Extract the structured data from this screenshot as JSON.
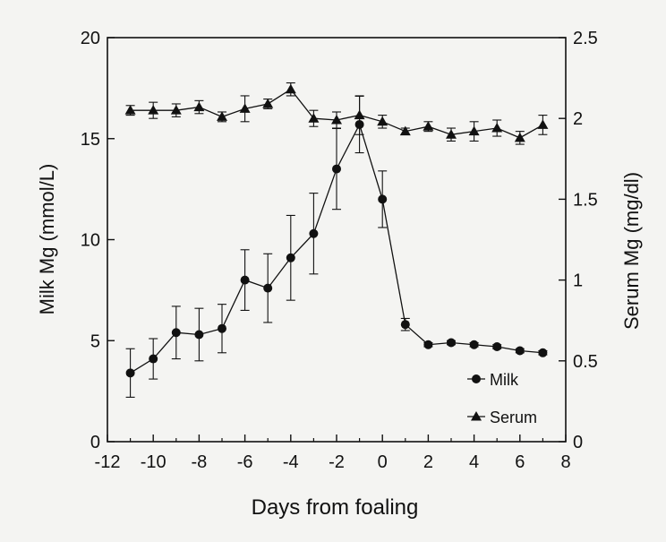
{
  "chart_data": {
    "type": "line",
    "xlabel": "Days from foaling",
    "ylabel_left": "Milk Mg (mmol/L)",
    "ylabel_right": "Serum Mg (mg/dl)",
    "xlim": [
      -12,
      8
    ],
    "ylim_left": [
      0,
      20
    ],
    "ylim_right": [
      0,
      2.5
    ],
    "x_ticks": [
      -12,
      -10,
      -8,
      -6,
      -4,
      -2,
      0,
      2,
      4,
      6,
      8
    ],
    "y_ticks_left": [
      0,
      5,
      10,
      15,
      20
    ],
    "y_ticks_right": [
      0,
      0.5,
      1,
      1.5,
      2,
      2.5
    ],
    "grid": false,
    "legend_placement": "bottom-right",
    "series": [
      {
        "name": "Milk",
        "axis": "left",
        "marker": "circle",
        "x": [
          -11,
          -10,
          -9,
          -8,
          -7,
          -6,
          -5,
          -4,
          -3,
          -2,
          -1,
          0,
          1,
          2,
          3,
          4,
          5,
          6,
          7
        ],
        "values": [
          3.4,
          4.1,
          5.4,
          5.3,
          5.6,
          8.0,
          7.6,
          9.1,
          10.3,
          13.5,
          15.7,
          12.0,
          5.8,
          4.8,
          4.9,
          4.8,
          4.7,
          4.5,
          4.4
        ],
        "error": [
          1.2,
          1.0,
          1.3,
          1.3,
          1.2,
          1.5,
          1.7,
          2.1,
          2.0,
          2.0,
          1.4,
          1.4,
          0.3,
          0.1,
          0.1,
          0.1,
          0.1,
          0.1,
          0.1
        ]
      },
      {
        "name": "Serum",
        "axis": "right",
        "marker": "triangle",
        "x": [
          -11,
          -10,
          -9,
          -8,
          -7,
          -6,
          -5,
          -4,
          -3,
          -2,
          -1,
          0,
          1,
          2,
          3,
          4,
          5,
          6,
          7
        ],
        "values": [
          2.05,
          2.05,
          2.05,
          2.07,
          2.01,
          2.06,
          2.09,
          2.18,
          2.0,
          1.99,
          2.02,
          1.98,
          1.92,
          1.95,
          1.9,
          1.92,
          1.94,
          1.88,
          1.96
        ],
        "error": [
          0.03,
          0.05,
          0.04,
          0.04,
          0.03,
          0.08,
          0.03,
          0.04,
          0.05,
          0.05,
          0.12,
          0.04,
          0.02,
          0.03,
          0.04,
          0.06,
          0.05,
          0.04,
          0.06
        ]
      }
    ]
  },
  "colors": {
    "ink": "#111111",
    "background": "#f4f4f2"
  }
}
